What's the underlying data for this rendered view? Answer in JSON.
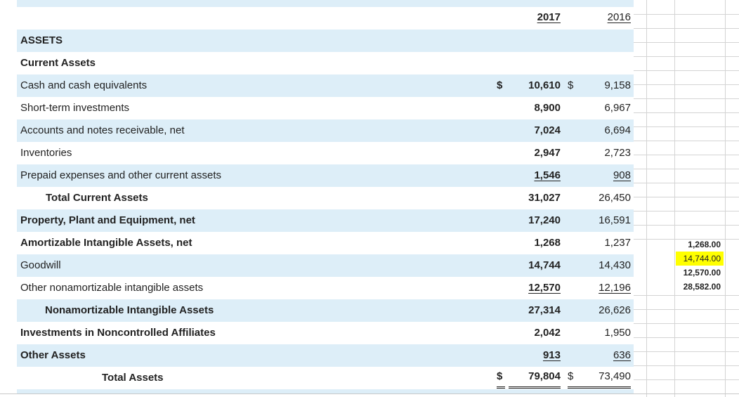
{
  "years": {
    "current": "2017",
    "prior": "2016"
  },
  "rows": [
    {
      "label": "ASSETS"
    },
    {
      "label": "Current Assets"
    },
    {
      "label": "Cash and cash equivalents",
      "dollar_current": "$",
      "current": "10,610",
      "dollar_prior": "$",
      "prior": "9,158"
    },
    {
      "label": "Short-term investments",
      "current": "8,900",
      "prior": "6,967"
    },
    {
      "label": "Accounts and notes receivable, net",
      "current": "7,024",
      "prior": "6,694"
    },
    {
      "label": "Inventories",
      "current": "2,947",
      "prior": "2,723"
    },
    {
      "label": "Prepaid expenses and other current assets",
      "current": "1,546",
      "prior": "908"
    },
    {
      "label": "Total Current Assets",
      "current": "31,027",
      "prior": "26,450"
    },
    {
      "label": "Property, Plant and Equipment, net",
      "current": "17,240",
      "prior": "16,591"
    },
    {
      "label": "Amortizable Intangible Assets, net",
      "current": "1,268",
      "prior": "1,237"
    },
    {
      "label": "Goodwill",
      "current": "14,744",
      "prior": "14,430"
    },
    {
      "label": "Other nonamortizable intangible assets",
      "current": "12,570",
      "prior": "12,196"
    },
    {
      "label": "Nonamortizable Intangible Assets",
      "current": "27,314",
      "prior": "26,626"
    },
    {
      "label": "Investments in Noncontrolled Affiliates",
      "current": "2,042",
      "prior": "1,950"
    },
    {
      "label": "Other Assets",
      "current": "913",
      "prior": "636"
    },
    {
      "label": "Total Assets",
      "dollar_current": "$",
      "current": "79,804",
      "dollar_prior": "$",
      "prior": "73,490"
    }
  ],
  "side_cells": [
    "1,268.00",
    "14,744.00",
    "12,570.00",
    "28,582.00"
  ],
  "colors": {
    "row_shade": "#ddeef8",
    "highlight": "#ffff00"
  }
}
